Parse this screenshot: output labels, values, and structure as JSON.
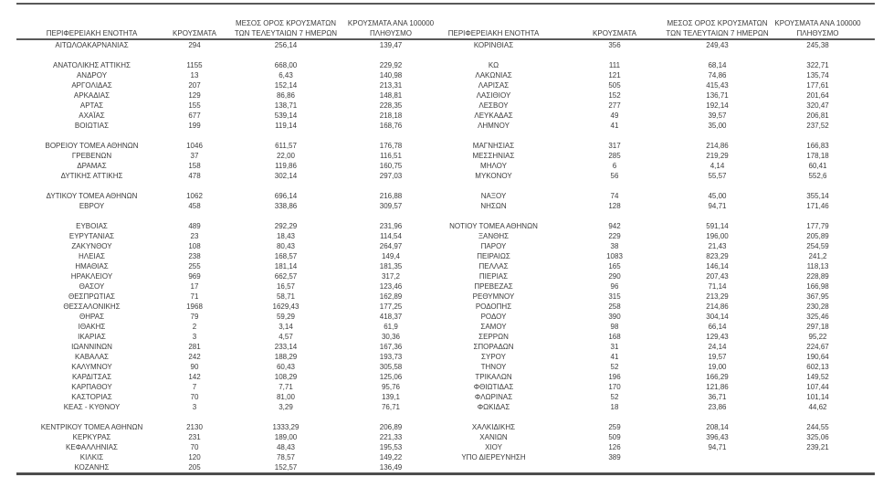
{
  "page": {
    "background": "#ffffff",
    "text_color": "#3b3b3b",
    "rule_color": "#595959"
  },
  "table": {
    "header": {
      "region": "ΠΕΡΙΦΕΡΕΙΑΚΗ ΕΝΟΤΗΤΑ",
      "cases": "ΚΡΟΥΣΜΑΤΑ",
      "avg7_line1": "ΜΕΣΟΣ ΟΡΟΣ ΚΡΟΥΣΜΑΤΩΝ",
      "avg7_line2": "ΤΩΝ ΤΕΛΕΥΤΑΙΩΝ 7 ΗΜΕΡΩΝ",
      "per100k_line1": "ΚΡΟΥΣΜΑΤΑ ΑΝΑ 100000",
      "per100k_line2": "ΠΛΗΘΥΣΜΟ"
    },
    "rows_left": [
      [
        "ΑΙΤΩΛΟΑΚΑΡΝΑΝΙΑΣ",
        "294",
        "256,14",
        "139,47"
      ],
      [
        "",
        "",
        "",
        ""
      ],
      [
        "ΑΝΑΤΟΛΙΚΗΣ ΑΤΤΙΚΗΣ",
        "1155",
        "668,00",
        "229,92"
      ],
      [
        "ΑΝΔΡΟΥ",
        "13",
        "6,43",
        "140,98"
      ],
      [
        "ΑΡΓΟΛΙΔΑΣ",
        "207",
        "152,14",
        "213,31"
      ],
      [
        "ΑΡΚΑΔΙΑΣ",
        "129",
        "86,86",
        "148,81"
      ],
      [
        "ΑΡΤΑΣ",
        "155",
        "138,71",
        "228,35"
      ],
      [
        "ΑΧΑΪΑΣ",
        "677",
        "539,14",
        "218,18"
      ],
      [
        "ΒΟΙΩΤΙΑΣ",
        "199",
        "119,14",
        "168,76"
      ],
      [
        "",
        "",
        "",
        ""
      ],
      [
        "ΒΟΡΕΙΟΥ ΤΟΜΕΑ ΑΘΗΝΩΝ",
        "1046",
        "611,57",
        "176,78"
      ],
      [
        "ΓΡΕΒΕΝΩΝ",
        "37",
        "22,00",
        "116,51"
      ],
      [
        "ΔΡΑΜΑΣ",
        "158",
        "119,86",
        "160,75"
      ],
      [
        "ΔΥΤΙΚΗΣ ΑΤΤΙΚΗΣ",
        "478",
        "302,14",
        "297,03"
      ],
      [
        "",
        "",
        "",
        ""
      ],
      [
        "ΔΥΤΙΚΟΥ ΤΟΜΕΑ ΑΘΗΝΩΝ",
        "1062",
        "696,14",
        "216,88"
      ],
      [
        "ΕΒΡΟΥ",
        "458",
        "338,86",
        "309,57"
      ],
      [
        "",
        "",
        "",
        ""
      ],
      [
        "ΕΥΒΟΙΑΣ",
        "489",
        "292,29",
        "231,96"
      ],
      [
        "ΕΥΡΥΤΑΝΙΑΣ",
        "23",
        "18,43",
        "114,54"
      ],
      [
        "ΖΑΚΥΝΘΟΥ",
        "108",
        "80,43",
        "264,97"
      ],
      [
        "ΗΛΕΙΑΣ",
        "238",
        "168,57",
        "149,4"
      ],
      [
        "ΗΜΑΘΙΑΣ",
        "255",
        "181,14",
        "181,35"
      ],
      [
        "ΗΡΑΚΛΕΙΟΥ",
        "969",
        "662,57",
        "317,2"
      ],
      [
        "ΘΑΣΟΥ",
        "17",
        "16,57",
        "123,46"
      ],
      [
        "ΘΕΣΠΡΩΤΙΑΣ",
        "71",
        "58,71",
        "162,89"
      ],
      [
        "ΘΕΣΣΑΛΟΝΙΚΗΣ",
        "1968",
        "1629,43",
        "177,25"
      ],
      [
        "ΘΗΡΑΣ",
        "79",
        "59,29",
        "418,37"
      ],
      [
        "ΙΘΑΚΗΣ",
        "2",
        "3,14",
        "61,9"
      ],
      [
        "ΙΚΑΡΙΑΣ",
        "3",
        "4,57",
        "30,36"
      ],
      [
        "ΙΩΑΝΝΙΝΩΝ",
        "281",
        "233,14",
        "167,36"
      ],
      [
        "ΚΑΒΑΛΑΣ",
        "242",
        "188,29",
        "193,73"
      ],
      [
        "ΚΑΛΥΜΝΟΥ",
        "90",
        "60,43",
        "305,58"
      ],
      [
        "ΚΑΡΔΙΤΣΑΣ",
        "142",
        "108,29",
        "125,06"
      ],
      [
        "ΚΑΡΠΑΘΟΥ",
        "7",
        "7,71",
        "95,76"
      ],
      [
        "ΚΑΣΤΟΡΙΑΣ",
        "70",
        "81,00",
        "139,1"
      ],
      [
        "ΚΕΑΣ - ΚΥΘΝΟΥ",
        "3",
        "3,29",
        "76,71"
      ],
      [
        "",
        "",
        "",
        ""
      ],
      [
        "ΚΕΝΤΡΙΚΟΥ ΤΟΜΕΑ ΑΘΗΝΩΝ",
        "2130",
        "1333,29",
        "206,89"
      ],
      [
        "ΚΕΡΚΥΡΑΣ",
        "231",
        "189,00",
        "221,33"
      ],
      [
        "ΚΕΦΑΛΛΗΝΙΑΣ",
        "70",
        "48,43",
        "195,53"
      ],
      [
        "ΚΙΛΚΙΣ",
        "120",
        "78,57",
        "149,22"
      ],
      [
        "ΚΟΖΑΝΗΣ",
        "205",
        "152,57",
        "136,49"
      ]
    ],
    "rows_right": [
      [
        "ΚΟΡΙΝΘΙΑΣ",
        "356",
        "249,43",
        "245,38"
      ],
      [
        "",
        "",
        "",
        ""
      ],
      [
        "ΚΩ",
        "111",
        "68,14",
        "322,71"
      ],
      [
        "ΛΑΚΩΝΙΑΣ",
        "121",
        "74,86",
        "135,74"
      ],
      [
        "ΛΑΡΙΣΑΣ",
        "505",
        "415,43",
        "177,61"
      ],
      [
        "ΛΑΣΙΘΙΟΥ",
        "152",
        "136,71",
        "201,64"
      ],
      [
        "ΛΕΣΒΟΥ",
        "277",
        "192,14",
        "320,47"
      ],
      [
        "ΛΕΥΚΑΔΑΣ",
        "49",
        "39,57",
        "206,81"
      ],
      [
        "ΛΗΜΝΟΥ",
        "41",
        "35,00",
        "237,52"
      ],
      [
        "",
        "",
        "",
        ""
      ],
      [
        "ΜΑΓΝΗΣΙΑΣ",
        "317",
        "214,86",
        "166,83"
      ],
      [
        "ΜΕΣΣΗΝΙΑΣ",
        "285",
        "219,29",
        "178,18"
      ],
      [
        "ΜΗΛΟΥ",
        "6",
        "4,14",
        "60,41"
      ],
      [
        "ΜΥΚΟΝΟΥ",
        "56",
        "55,57",
        "552,6"
      ],
      [
        "",
        "",
        "",
        ""
      ],
      [
        "ΝΑΞΟΥ",
        "74",
        "45,00",
        "355,14"
      ],
      [
        "ΝΗΣΩΝ",
        "128",
        "94,71",
        "171,46"
      ],
      [
        "",
        "",
        "",
        ""
      ],
      [
        "ΝΟΤΙΟΥ ΤΟΜΕΑ ΑΘΗΝΩΝ",
        "942",
        "591,14",
        "177,79"
      ],
      [
        "ΞΑΝΘΗΣ",
        "229",
        "196,00",
        "205,89"
      ],
      [
        "ΠΑΡΟΥ",
        "38",
        "21,43",
        "254,59"
      ],
      [
        "ΠΕΙΡΑΙΩΣ",
        "1083",
        "823,29",
        "241,2"
      ],
      [
        "ΠΕΛΛΑΣ",
        "165",
        "146,14",
        "118,13"
      ],
      [
        "ΠΙΕΡΙΑΣ",
        "290",
        "207,43",
        "228,89"
      ],
      [
        "ΠΡΕΒΕΖΑΣ",
        "96",
        "71,14",
        "166,98"
      ],
      [
        "ΡΕΘΥΜΝΟΥ",
        "315",
        "213,29",
        "367,95"
      ],
      [
        "ΡΟΔΟΠΗΣ",
        "258",
        "214,86",
        "230,28"
      ],
      [
        "ΡΟΔΟΥ",
        "390",
        "304,14",
        "325,46"
      ],
      [
        "ΣΑΜΟΥ",
        "98",
        "66,14",
        "297,18"
      ],
      [
        "ΣΕΡΡΩΝ",
        "168",
        "129,43",
        "95,22"
      ],
      [
        "ΣΠΟΡΑΔΩΝ",
        "31",
        "24,14",
        "224,67"
      ],
      [
        "ΣΥΡΟΥ",
        "41",
        "19,57",
        "190,64"
      ],
      [
        "ΤΗΝΟΥ",
        "52",
        "19,00",
        "602,13"
      ],
      [
        "ΤΡΙΚΑΛΩΝ",
        "196",
        "166,29",
        "149,52"
      ],
      [
        "ΦΘΙΩΤΙΔΑΣ",
        "170",
        "121,86",
        "107,44"
      ],
      [
        "ΦΛΩΡΙΝΑΣ",
        "52",
        "36,71",
        "101,14"
      ],
      [
        "ΦΩΚΙΔΑΣ",
        "18",
        "23,86",
        "44,62"
      ],
      [
        "",
        "",
        "",
        ""
      ],
      [
        "ΧΑΛΚΙΔΙΚΗΣ",
        "259",
        "208,14",
        "244,55"
      ],
      [
        "ΧΑΝΙΩΝ",
        "509",
        "396,43",
        "325,06"
      ],
      [
        "ΧΙΟΥ",
        "126",
        "94,71",
        "239,21"
      ],
      [
        "ΥΠΟ ΔΙΕΡΕΥΝΗΣΗ",
        "389",
        "",
        ""
      ],
      [
        "",
        "",
        "",
        ""
      ]
    ]
  }
}
